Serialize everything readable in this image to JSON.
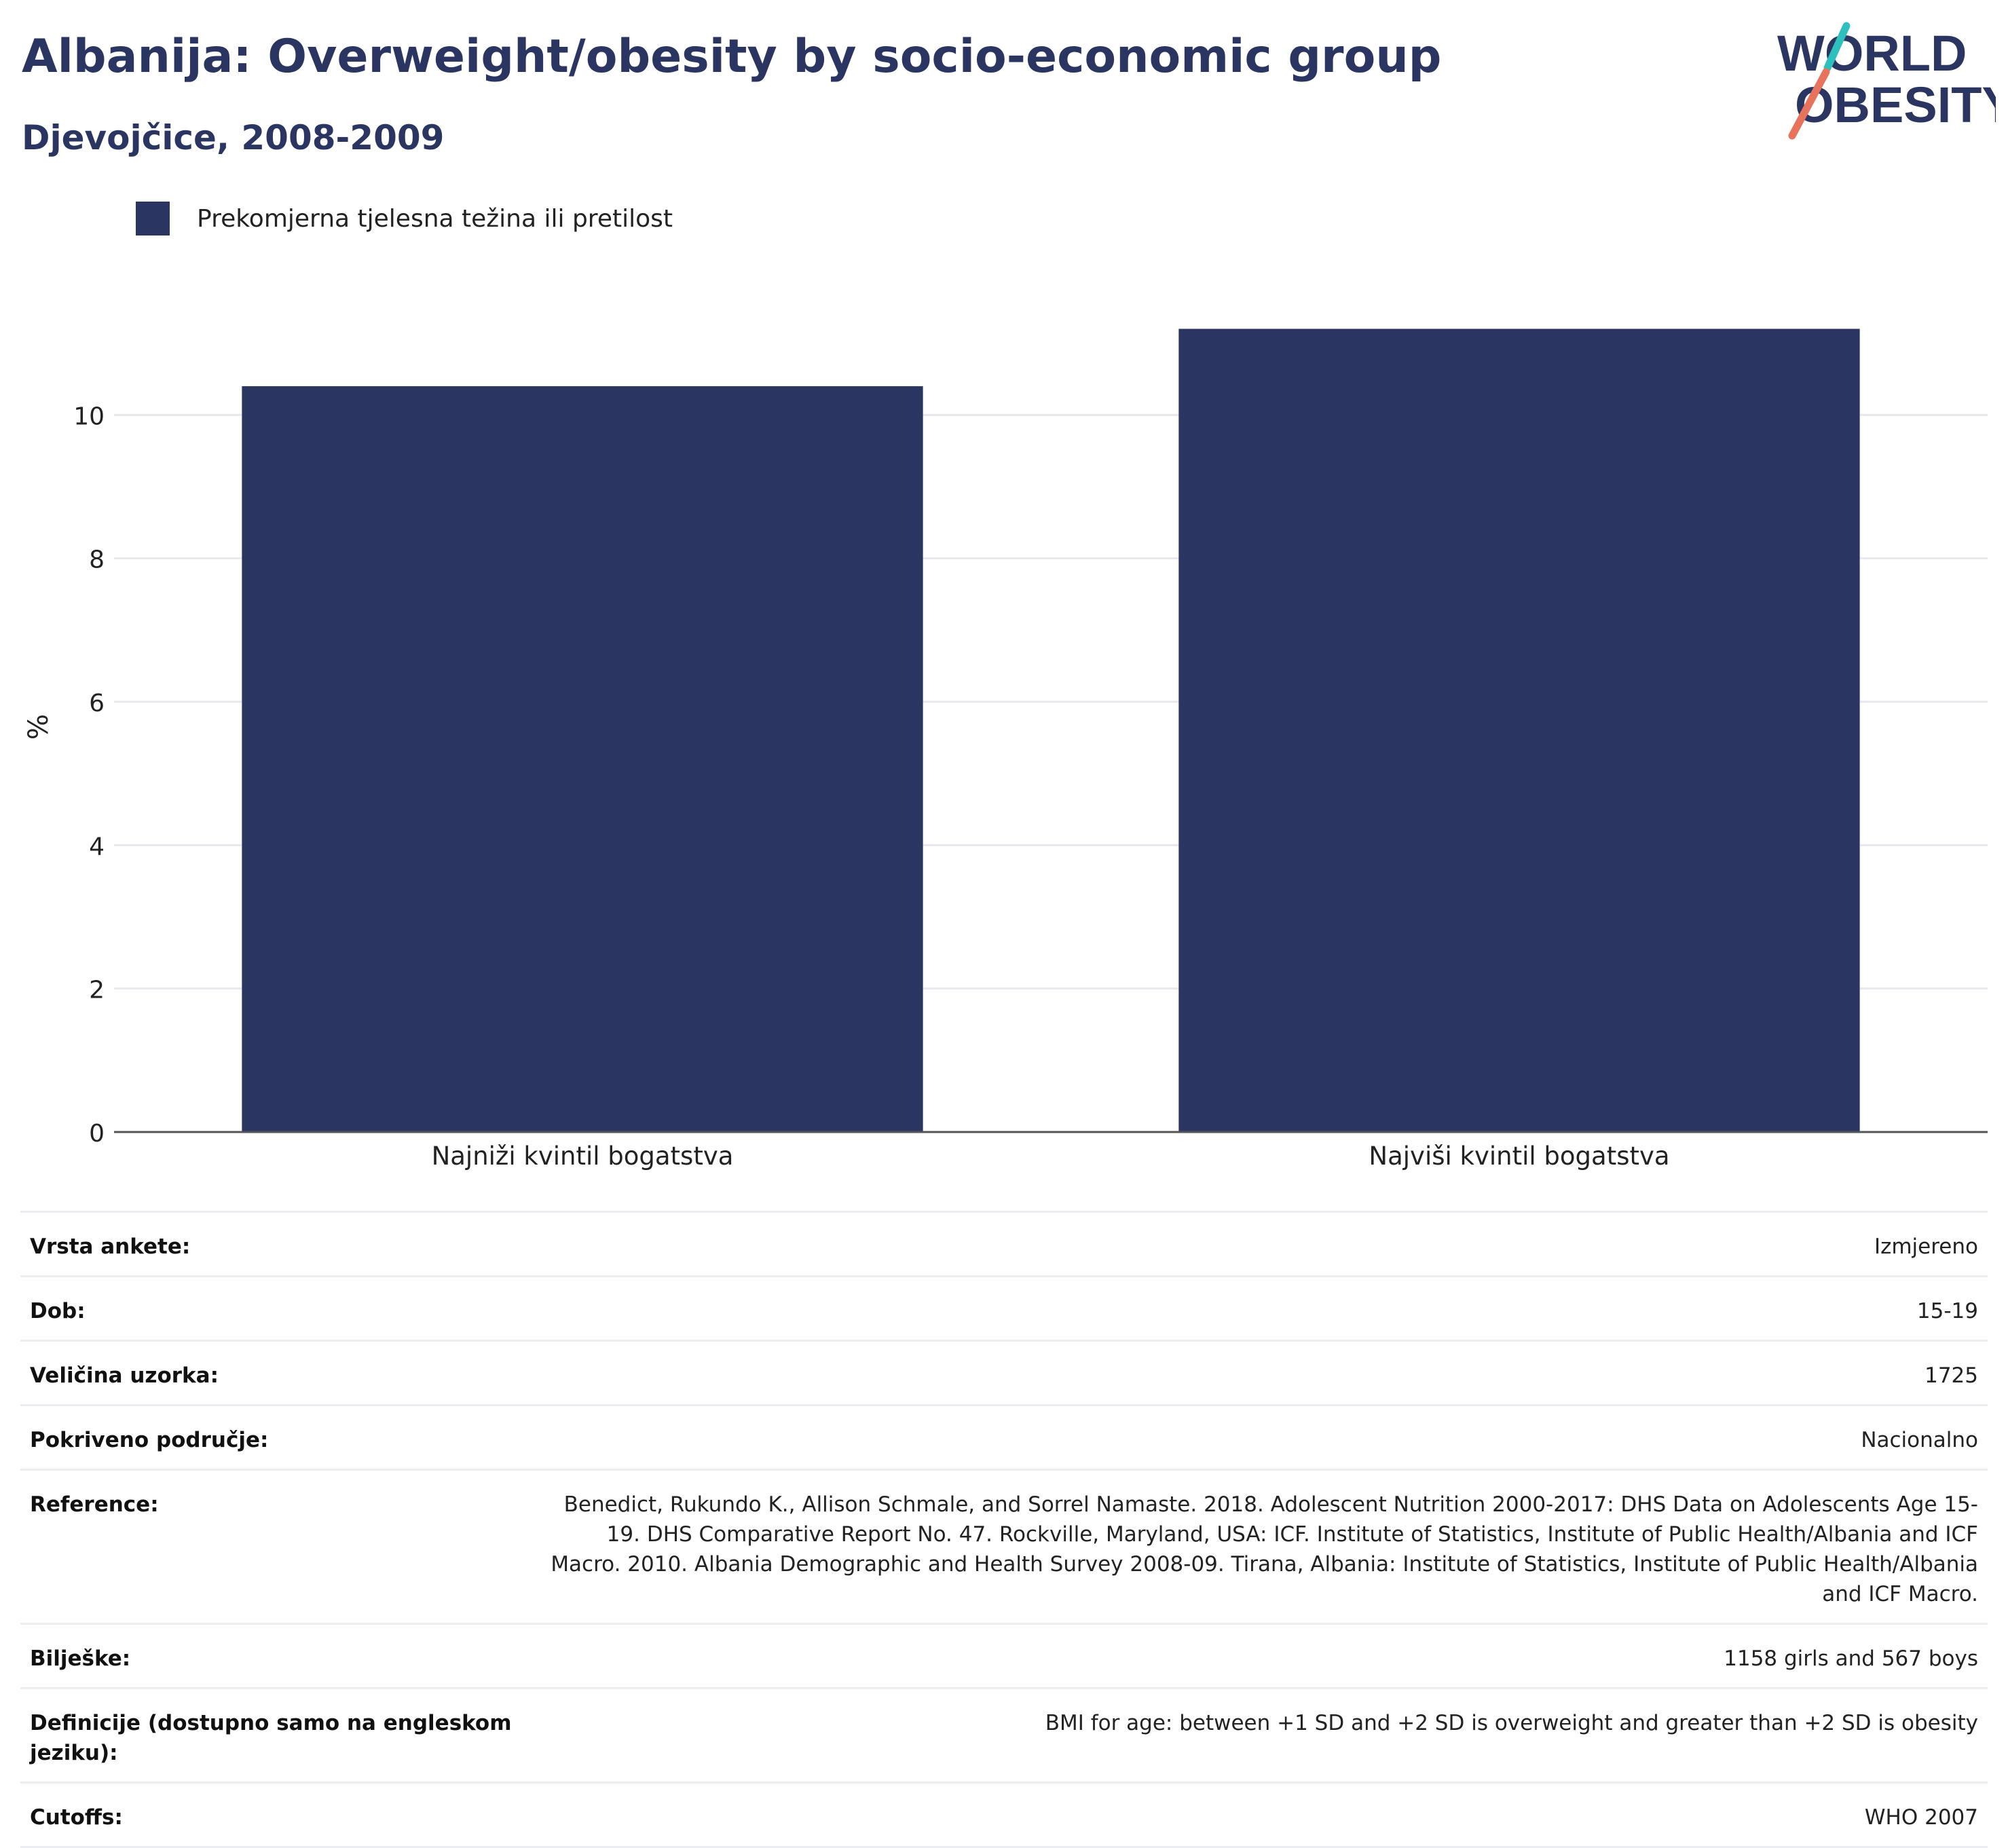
{
  "header": {
    "title": "Albanija: Overweight/obesity by socio-economic group",
    "subtitle": "Djevojčice, 2008-2009"
  },
  "logo": {
    "line1": "WORLD",
    "line2": "OBESITY"
  },
  "colors": {
    "bar": "#2a3661",
    "grid": "#e6e8ee",
    "axis": "#555555"
  },
  "chart_data": {
    "type": "bar",
    "categories": [
      "Najniži kvintil bogatstva",
      "Najviši kvintil bogatstva"
    ],
    "series": [
      {
        "name": "Prekomjerna tjelesna težina ili pretilost",
        "values": [
          10.4,
          11.2
        ]
      }
    ],
    "ylabel": "%",
    "xlabel": "",
    "ylim": [
      0,
      12
    ],
    "yticks": [
      0,
      2,
      4,
      6,
      8,
      10
    ],
    "grid": true,
    "legend": "top-left"
  },
  "info": [
    {
      "label": "Vrsta ankete:",
      "value": "Izmjereno"
    },
    {
      "label": "Dob:",
      "value": "15-19"
    },
    {
      "label": "Veličina uzorka:",
      "value": "1725"
    },
    {
      "label": "Pokriveno područje:",
      "value": "Nacionalno"
    },
    {
      "label": "Reference:",
      "value": "Benedict, Rukundo K., Allison Schmale, and Sorrel Namaste. 2018. Adolescent Nutrition 2000-2017: DHS Data on Adolescents Age 15-19. DHS Comparative Report No. 47. Rockville, Maryland, USA: ICF. Institute of Statistics, Institute of Public Health/Albania and ICF Macro. 2010. Albania Demographic and Health Survey 2008-09. Tirana, Albania: Institute of Statistics, Institute of Public Health/Albania and ICF Macro."
    },
    {
      "label": "Bilješke:",
      "value": "1158 girls and 567 boys"
    },
    {
      "label": "Definicije (dostupno samo na engleskom jeziku):",
      "value": "BMI for age: between +1 SD and +2 SD is overweight and greater than +2 SD is obesity"
    },
    {
      "label": "Cutoffs:",
      "value": "WHO 2007"
    }
  ]
}
